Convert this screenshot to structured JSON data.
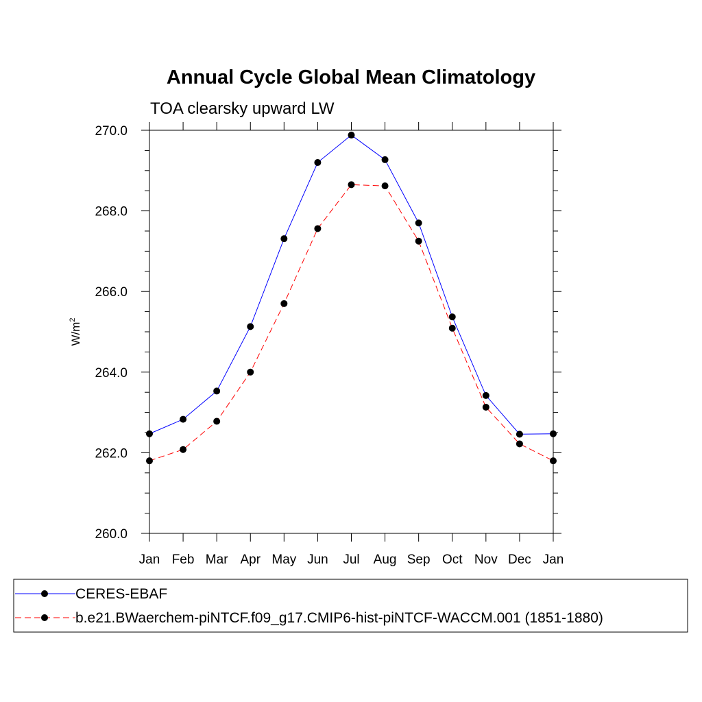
{
  "chart_data": {
    "type": "line",
    "title": "Annual Cycle Global Mean Climatology",
    "subtitle": "TOA clearsky upward LW",
    "xlabel": "",
    "ylabel": "W/m",
    "ylabel_superscript": "2",
    "ylim": [
      260.0,
      270.0
    ],
    "y_ticks": [
      "260.0",
      "262.0",
      "264.0",
      "266.0",
      "268.0",
      "270.0"
    ],
    "categories": [
      "Jan",
      "Feb",
      "Mar",
      "Apr",
      "May",
      "Jun",
      "Jul",
      "Aug",
      "Sep",
      "Oct",
      "Nov",
      "Dec",
      "Jan"
    ],
    "series": [
      {
        "name": "CERES-EBAF",
        "color": "#0000ff",
        "dash": "solid",
        "values": [
          262.47,
          262.83,
          263.53,
          265.13,
          267.31,
          269.2,
          269.88,
          269.27,
          267.7,
          265.37,
          263.42,
          262.46,
          262.47
        ]
      },
      {
        "name": "b.e21.BWaerchem-piNTCF.f09_g17.CMIP6-hist-piNTCF-WACCM.001 (1851-1880)",
        "color": "#ff0000",
        "dash": "dashed",
        "values": [
          261.8,
          262.08,
          262.78,
          264.0,
          265.7,
          267.56,
          268.65,
          268.62,
          267.25,
          265.09,
          263.13,
          262.22,
          261.8
        ]
      }
    ],
    "marker_color": "#000000",
    "legend_position": "bottom"
  }
}
